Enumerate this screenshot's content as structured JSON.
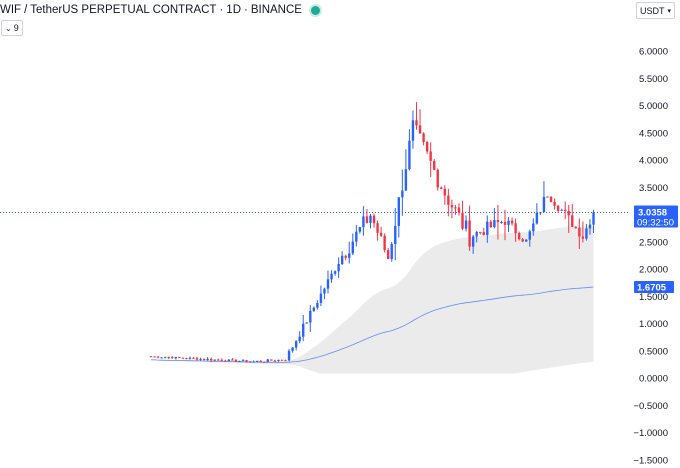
{
  "header": {
    "symbol": "WIF",
    "separator": "/",
    "quote_name": "TetherUS PERPETUAL CONTRACT",
    "dot1": "·",
    "interval": "1D",
    "dot2": "·",
    "exchange": "BINANCE",
    "status_icon": "live-dot-icon",
    "status_color": "#22ab94"
  },
  "indicator_toggle": {
    "value": "9",
    "icon": "chevron-down-icon"
  },
  "currency_selector": {
    "label": "USDT",
    "icon": "chevron-down-icon"
  },
  "price_axis": {
    "ticks": [
      "6.0000",
      "5.5000",
      "5.0000",
      "4.5000",
      "4.0000",
      "3.5000",
      "2.5000",
      "2.0000",
      "1.5000",
      "1.0000",
      "0.5000",
      "0.0000",
      "−0.5000",
      "−1.0000",
      "−1.5000"
    ]
  },
  "price_badges": {
    "last_price": "3.0358",
    "countdown": "09:32:50",
    "ma_value": "1.6705"
  },
  "colors": {
    "up": "#2962ff",
    "down": "#f23645",
    "ma": "#2962ff",
    "band": "#ebebeb",
    "last_line": "#2962ff"
  },
  "chart_data": {
    "type": "candlestick",
    "scale": {
      "ymin": -1.5,
      "ymax": 6.5
    },
    "last_price": 3.0358,
    "ma_last": 1.6705,
    "segments": [
      {
        "n": 30,
        "from": 0.4,
        "to": 0.3,
        "vol": 0.03
      },
      {
        "n": 9,
        "from": 0.3,
        "to": 0.34,
        "vol": 0.04
      },
      {
        "n": 16,
        "from": 0.34,
        "to": 2.25,
        "vol": 0.12
      },
      {
        "n": 8,
        "from": 2.25,
        "to": 3.0,
        "vol": 0.28
      },
      {
        "n": 5,
        "from": 3.0,
        "to": 2.2,
        "vol": 0.22
      },
      {
        "n": 7,
        "from": 2.2,
        "to": 4.6,
        "vol": 0.3
      },
      {
        "n": 9,
        "from": 4.6,
        "to": 3.4,
        "vol": 0.3
      },
      {
        "n": 7,
        "from": 3.4,
        "to": 2.6,
        "vol": 0.32
      },
      {
        "n": 10,
        "from": 2.6,
        "to": 2.9,
        "vol": 0.2
      },
      {
        "n": 6,
        "from": 2.9,
        "to": 2.5,
        "vol": 0.15
      },
      {
        "n": 6,
        "from": 2.5,
        "to": 3.4,
        "vol": 0.18
      },
      {
        "n": 10,
        "from": 3.4,
        "to": 2.6,
        "vol": 0.16
      },
      {
        "n": 3,
        "from": 2.6,
        "to": 3.04,
        "vol": 0.15
      }
    ]
  }
}
